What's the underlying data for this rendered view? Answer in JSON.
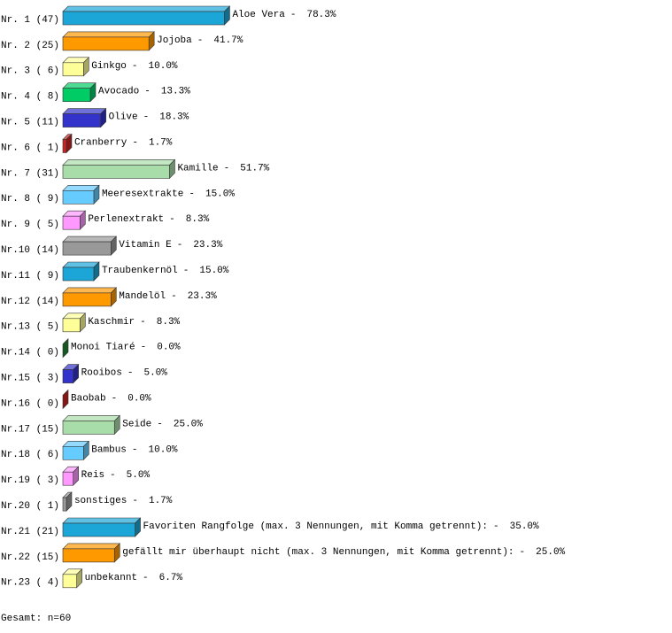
{
  "chart_data": {
    "type": "bar3d",
    "row_labels": [
      "Nr. 1 (47)",
      "Nr. 2 (25)",
      "Nr. 3 ( 6)",
      "Nr. 4 ( 8)",
      "Nr. 5 (11)",
      "Nr. 6 ( 1)",
      "Nr. 7 (31)",
      "Nr. 8 ( 9)",
      "Nr. 9 ( 5)",
      "Nr.10 (14)",
      "Nr.11 ( 9)",
      "Nr.12 (14)",
      "Nr.13 ( 5)",
      "Nr.14 ( 0)",
      "Nr.15 ( 3)",
      "Nr.16 ( 0)",
      "Nr.17 (15)",
      "Nr.18 ( 6)",
      "Nr.19 ( 3)",
      "Nr.20 ( 1)",
      "Nr.21 (21)",
      "Nr.22 (15)",
      "Nr.23 ( 4)"
    ],
    "categories": [
      "Aloe Vera",
      "Jojoba",
      "Ginkgo",
      "Avocado",
      "Olive",
      "Cranberry",
      "Kamille",
      "Meeresextrakte",
      "Perlenextrakt",
      "Vitamin E",
      "Traubenkernöl",
      "Mandelöl",
      "Kaschmir",
      "Monoi Tiaré",
      "Rooibos",
      "Baobab",
      "Seide",
      "Bambus",
      "Reis",
      "sonstiges",
      "Favoriten Rangfolge (max. 3 Nennungen, mit Komma getrennt):",
      "gefällt mir überhaupt nicht (max. 3 Nennungen, mit Komma getrennt):",
      "unbekannt"
    ],
    "separator": "-",
    "values": [
      78.3,
      41.7,
      10.0,
      13.3,
      18.3,
      1.7,
      51.7,
      15.0,
      8.3,
      23.3,
      15.0,
      23.3,
      8.3,
      0.0,
      5.0,
      0.0,
      25.0,
      10.0,
      5.0,
      1.7,
      35.0,
      25.0,
      6.7
    ],
    "value_labels": [
      "78.3%",
      "41.7%",
      "10.0%",
      "13.3%",
      "18.3%",
      "1.7%",
      "51.7%",
      "15.0%",
      "8.3%",
      "23.3%",
      "15.0%",
      "23.3%",
      "8.3%",
      "0.0%",
      "5.0%",
      "0.0%",
      "25.0%",
      "10.0%",
      "5.0%",
      "1.7%",
      "35.0%",
      "25.0%",
      "6.7%"
    ],
    "colors": [
      "#1ca6d8",
      "#ff9900",
      "#ffff99",
      "#00cc66",
      "#3333cc",
      "#cc2222",
      "#a8dca8",
      "#66ccff",
      "#ff99ff",
      "#999999",
      "#1ca6d8",
      "#ff9900",
      "#ffff99",
      "#228833",
      "#3333cc",
      "#cc2222",
      "#a8dca8",
      "#66ccff",
      "#ff99ff",
      "#999999",
      "#1ca6d8",
      "#ff9900",
      "#ffff99"
    ],
    "footer": "Gesamt: n=60"
  }
}
